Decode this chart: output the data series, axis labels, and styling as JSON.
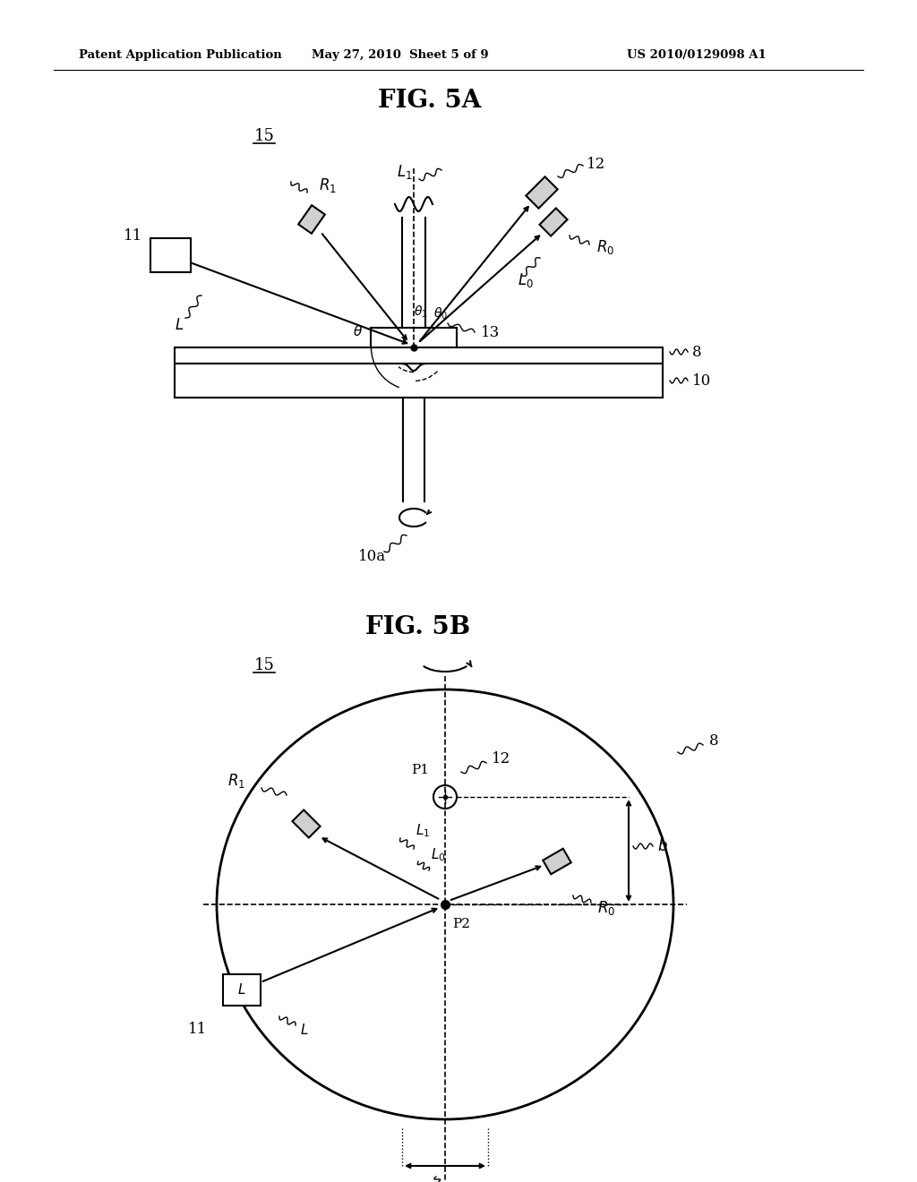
{
  "background_color": "#ffffff",
  "header_text": "Patent Application Publication",
  "header_date": "May 27, 2010  Sheet 5 of 9",
  "header_patent": "US 2010/0129098 A1",
  "fig5a_title": "FIG. 5A",
  "fig5b_title": "FIG. 5B",
  "label_15a": "15",
  "label_15b": "15",
  "label_11": "11",
  "label_12": "12",
  "label_13": "13",
  "label_8": "8",
  "label_10": "10",
  "label_10a": "10a",
  "label_R1": "R",
  "label_R1_sub": "1",
  "label_R0": "R",
  "label_R0_sub": "0",
  "label_L": "L",
  "label_L1": "L",
  "label_L1_sub": "1",
  "label_L0": "L",
  "label_L0_sub": "0",
  "label_theta": "θ",
  "label_theta0": "θ",
  "label_theta0_sub": "0",
  "label_theta1": "θ",
  "label_theta1_sub": "1",
  "label_P1": "P1",
  "label_P2": "P2",
  "label_a": "a",
  "label_b": "b"
}
